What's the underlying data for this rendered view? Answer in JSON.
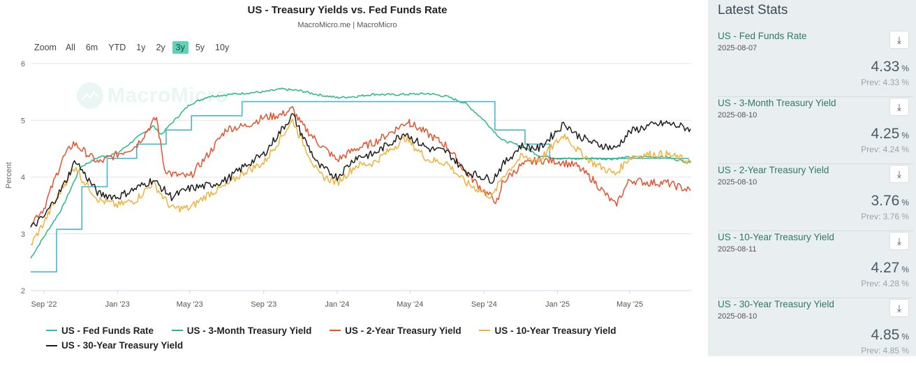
{
  "chart_data": {
    "type": "line",
    "title": "US - Treasury Yields vs. Fed Funds Rate",
    "subtitle": "MacroMicro.me | MacroMicro",
    "ylabel": "Percent",
    "ylim": [
      2,
      6
    ],
    "yticks": [
      "2",
      "3",
      "4",
      "5",
      "6"
    ],
    "xlim": [
      "2022-08-10",
      "2025-08-11"
    ],
    "xticks": [
      {
        "date": "2022-09-01",
        "label": "Sep '22"
      },
      {
        "date": "2023-01-01",
        "label": "Jan '23"
      },
      {
        "date": "2023-05-01",
        "label": "May '23"
      },
      {
        "date": "2023-09-01",
        "label": "Sep '23"
      },
      {
        "date": "2024-01-01",
        "label": "Jan '24"
      },
      {
        "date": "2024-05-01",
        "label": "May '24"
      },
      {
        "date": "2024-09-01",
        "label": "Sep '24"
      },
      {
        "date": "2025-01-01",
        "label": "Jan '25"
      },
      {
        "date": "2025-05-01",
        "label": "May '25"
      }
    ],
    "grid": true,
    "legend_position": "bottom",
    "series": [
      {
        "name": "US - Fed Funds Rate",
        "color": "#3ab4c8",
        "step": true,
        "x": [
          "2022-08-10",
          "2022-09-22",
          "2022-11-03",
          "2022-12-15",
          "2023-02-02",
          "2023-03-23",
          "2023-05-04",
          "2023-07-27",
          "2024-09-19",
          "2024-11-08",
          "2024-12-19",
          "2025-08-07"
        ],
        "y": [
          2.33,
          3.08,
          3.83,
          4.33,
          4.58,
          4.83,
          5.08,
          5.33,
          4.83,
          4.58,
          4.33,
          4.33
        ]
      },
      {
        "name": "US - 3-Month Treasury Yield",
        "color": "#2ab884",
        "x": [
          "2022-08-10",
          "2022-09-01",
          "2022-10-01",
          "2022-11-01",
          "2022-12-01",
          "2023-01-01",
          "2023-02-01",
          "2023-03-01",
          "2023-03-15",
          "2023-04-01",
          "2023-05-01",
          "2023-06-01",
          "2023-07-01",
          "2023-08-01",
          "2023-09-01",
          "2023-10-01",
          "2023-11-01",
          "2023-12-01",
          "2024-01-01",
          "2024-02-01",
          "2024-03-01",
          "2024-04-01",
          "2024-05-01",
          "2024-06-01",
          "2024-07-01",
          "2024-08-01",
          "2024-09-01",
          "2024-10-01",
          "2024-11-01",
          "2024-12-01",
          "2025-01-01",
          "2025-02-01",
          "2025-03-01",
          "2025-04-01",
          "2025-05-01",
          "2025-06-01",
          "2025-07-01",
          "2025-08-10"
        ],
        "y": [
          2.57,
          2.95,
          3.45,
          4.18,
          4.35,
          4.42,
          4.68,
          4.9,
          4.75,
          4.95,
          5.28,
          5.42,
          5.45,
          5.48,
          5.5,
          5.55,
          5.52,
          5.45,
          5.4,
          5.42,
          5.46,
          5.45,
          5.46,
          5.47,
          5.42,
          5.3,
          5.0,
          4.65,
          4.55,
          4.38,
          4.33,
          4.32,
          4.33,
          4.32,
          4.35,
          4.36,
          4.35,
          4.25
        ]
      },
      {
        "name": "US - 2-Year Treasury Yield",
        "color": "#e5522f",
        "x": [
          "2022-08-10",
          "2022-09-01",
          "2022-10-01",
          "2022-10-20",
          "2022-11-01",
          "2022-12-01",
          "2023-01-01",
          "2023-02-01",
          "2023-03-07",
          "2023-03-20",
          "2023-04-01",
          "2023-05-01",
          "2023-06-01",
          "2023-07-01",
          "2023-08-01",
          "2023-09-01",
          "2023-10-01",
          "2023-10-19",
          "2023-11-01",
          "2023-12-01",
          "2024-01-01",
          "2024-02-01",
          "2024-03-01",
          "2024-04-01",
          "2024-04-30",
          "2024-05-01",
          "2024-06-01",
          "2024-07-01",
          "2024-08-01",
          "2024-09-01",
          "2024-09-25",
          "2024-10-01",
          "2024-11-01",
          "2024-12-01",
          "2025-01-01",
          "2025-02-01",
          "2025-03-01",
          "2025-04-07",
          "2025-05-01",
          "2025-06-01",
          "2025-07-01",
          "2025-08-10"
        ],
        "y": [
          3.2,
          3.45,
          4.3,
          4.6,
          4.5,
          4.25,
          4.4,
          4.55,
          5.05,
          4.15,
          4.05,
          4.0,
          4.4,
          4.85,
          4.9,
          5.05,
          5.1,
          5.2,
          4.95,
          4.6,
          4.3,
          4.5,
          4.6,
          4.8,
          5.0,
          4.95,
          4.75,
          4.55,
          4.1,
          3.75,
          3.55,
          3.9,
          4.2,
          4.3,
          4.28,
          4.2,
          3.95,
          3.5,
          3.95,
          3.9,
          3.9,
          3.76
        ]
      },
      {
        "name": "US - 10-Year Treasury Yield",
        "color": "#f0b23a",
        "x": [
          "2022-08-10",
          "2022-09-01",
          "2022-10-01",
          "2022-10-24",
          "2022-11-01",
          "2022-12-01",
          "2023-01-01",
          "2023-02-01",
          "2023-03-01",
          "2023-04-01",
          "2023-05-01",
          "2023-06-01",
          "2023-07-01",
          "2023-08-01",
          "2023-09-01",
          "2023-10-19",
          "2023-11-01",
          "2023-12-01",
          "2024-01-01",
          "2024-02-01",
          "2024-03-01",
          "2024-04-25",
          "2024-05-01",
          "2024-06-01",
          "2024-07-01",
          "2024-08-01",
          "2024-09-15",
          "2024-10-01",
          "2024-11-01",
          "2024-12-01",
          "2025-01-13",
          "2025-02-01",
          "2025-03-01",
          "2025-04-07",
          "2025-05-01",
          "2025-06-01",
          "2025-07-01",
          "2025-08-11"
        ],
        "y": [
          2.8,
          3.2,
          3.8,
          4.2,
          4.0,
          3.6,
          3.5,
          3.6,
          3.9,
          3.45,
          3.45,
          3.7,
          3.85,
          4.1,
          4.25,
          5.0,
          4.7,
          4.05,
          3.9,
          4.2,
          4.25,
          4.7,
          4.6,
          4.3,
          4.25,
          3.9,
          3.65,
          4.0,
          4.35,
          4.3,
          4.75,
          4.5,
          4.25,
          4.05,
          4.35,
          4.4,
          4.4,
          4.27
        ]
      },
      {
        "name": "US - 30-Year Treasury Yield",
        "color": "#1e1e1e",
        "x": [
          "2022-08-10",
          "2022-09-01",
          "2022-10-01",
          "2022-10-24",
          "2022-11-01",
          "2022-12-01",
          "2023-01-01",
          "2023-02-01",
          "2023-03-01",
          "2023-04-01",
          "2023-05-01",
          "2023-06-01",
          "2023-07-01",
          "2023-08-01",
          "2023-09-01",
          "2023-10-19",
          "2023-11-01",
          "2023-12-01",
          "2024-01-01",
          "2024-02-01",
          "2024-03-01",
          "2024-04-25",
          "2024-05-01",
          "2024-06-01",
          "2024-07-01",
          "2024-08-01",
          "2024-09-15",
          "2024-10-01",
          "2024-11-01",
          "2024-12-01",
          "2025-01-13",
          "2025-02-01",
          "2025-03-01",
          "2025-04-07",
          "2025-05-01",
          "2025-06-01",
          "2025-07-01",
          "2025-08-10"
        ],
        "y": [
          3.1,
          3.3,
          3.8,
          4.3,
          4.15,
          3.7,
          3.65,
          3.8,
          3.95,
          3.65,
          3.8,
          3.85,
          3.95,
          4.2,
          4.4,
          5.1,
          4.8,
          4.2,
          4.0,
          4.35,
          4.4,
          4.8,
          4.7,
          4.5,
          4.45,
          4.1,
          3.95,
          4.2,
          4.55,
          4.5,
          4.95,
          4.75,
          4.6,
          4.5,
          4.8,
          4.9,
          4.95,
          4.85
        ]
      }
    ]
  },
  "zoom": {
    "label": "Zoom",
    "buttons": [
      "All",
      "6m",
      "YTD",
      "1y",
      "2y",
      "3y",
      "5y",
      "10y"
    ],
    "active": "3y"
  },
  "watermark": "MacroMicro",
  "stats": {
    "title": "Latest Stats",
    "items": [
      {
        "name": "US - Fed Funds Rate",
        "date": "2025-08-07",
        "value": "4.33",
        "unit": "%",
        "prev": "Prev: 4.33 %"
      },
      {
        "name": "US - 3-Month Treasury Yield",
        "date": "2025-08-10",
        "value": "4.25",
        "unit": "%",
        "prev": "Prev: 4.24 %"
      },
      {
        "name": "US - 2-Year Treasury Yield",
        "date": "2025-08-10",
        "value": "3.76",
        "unit": "%",
        "prev": "Prev: 3.76 %"
      },
      {
        "name": "US - 10-Year Treasury Yield",
        "date": "2025-08-11",
        "value": "4.27",
        "unit": "%",
        "prev": "Prev: 4.28 %"
      },
      {
        "name": "US - 30-Year Treasury Yield",
        "date": "2025-08-10",
        "value": "4.85",
        "unit": "%",
        "prev": "Prev: 4.85 %"
      }
    ]
  },
  "colors": {
    "accent": "#5fd3b7",
    "panel_bg": "#e9eef0",
    "stat_name": "#2f7a63"
  }
}
